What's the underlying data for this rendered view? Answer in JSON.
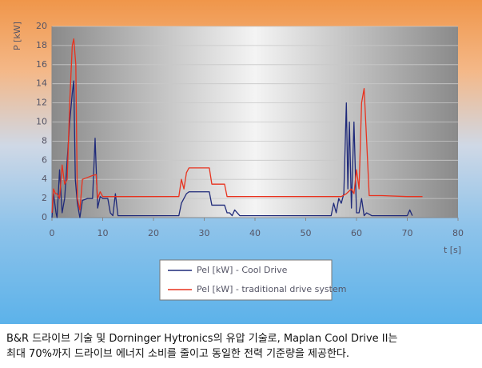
{
  "chart_data": {
    "type": "line",
    "ylabel": "P [kW]",
    "xlabel": "t [s]",
    "xlim": [
      0,
      80
    ],
    "xticks": [
      0,
      10,
      20,
      30,
      40,
      50,
      60,
      70,
      80
    ],
    "ylim": [
      0,
      20
    ],
    "yticks": [
      0,
      2,
      4,
      6,
      8,
      10,
      12,
      14,
      16,
      18,
      20
    ],
    "grid": true,
    "series": [
      {
        "name": "Pel [kW] - Cool Drive",
        "color": "#1f2a7a",
        "x": [
          0,
          0.3,
          0.8,
          1,
          1.5,
          2,
          2.5,
          3,
          3.5,
          4,
          4.3,
          4.6,
          5,
          5.5,
          6,
          7,
          8,
          8.5,
          9,
          9.5,
          10,
          11,
          11.5,
          12,
          12.5,
          13,
          20,
          25,
          25.5,
          26,
          26.5,
          27,
          30,
          31,
          31.5,
          34,
          34.5,
          35,
          35.5,
          36,
          37,
          38,
          55,
          55.5,
          56,
          56.5,
          57,
          57.5,
          58,
          58.3,
          58.6,
          59,
          59.5,
          60,
          60.5,
          61,
          61.5,
          62,
          63,
          70,
          70.5,
          71
        ],
        "values": [
          0,
          2.5,
          0.5,
          0,
          5,
          0.5,
          2,
          6,
          10,
          13,
          14.3,
          4,
          1.5,
          0,
          1.8,
          2,
          2,
          8.3,
          1,
          2.2,
          2,
          2,
          0.5,
          0.2,
          2.5,
          0.2,
          0.2,
          0.2,
          1.5,
          2,
          2.5,
          2.7,
          2.7,
          2.7,
          1.3,
          1.3,
          0.5,
          0.5,
          0.2,
          0.8,
          0.2,
          0.2,
          0.2,
          1.5,
          0.5,
          2,
          1.5,
          2.5,
          12,
          3,
          10,
          1,
          10,
          0.5,
          0.5,
          2,
          0.2,
          0.5,
          0.2,
          0.2,
          0.8,
          0.2
        ]
      },
      {
        "name": "Pel [kW] - traditional drive system",
        "color": "#e8321e",
        "x": [
          0,
          0.3,
          0.7,
          1,
          1.5,
          2,
          2.5,
          3,
          3.5,
          4,
          4.3,
          4.7,
          5,
          5.5,
          6,
          7,
          8,
          8.7,
          9,
          9.5,
          10,
          12,
          13,
          20,
          25,
          25.5,
          26,
          26.5,
          27,
          30,
          31,
          31.5,
          34,
          34.5,
          40,
          50,
          56,
          57,
          58,
          59,
          59.5,
          60,
          60.5,
          61,
          61.5,
          62,
          62.5,
          65,
          70,
          73
        ],
        "values": [
          0.5,
          3,
          2.5,
          2.5,
          2,
          5.5,
          3.5,
          4,
          12,
          18,
          18.7,
          16,
          2,
          0.8,
          4,
          4.2,
          4.4,
          4.5,
          2,
          2.7,
          2.2,
          2.2,
          2.2,
          2.2,
          2.2,
          4,
          3,
          4.7,
          5.2,
          5.2,
          5.2,
          3.5,
          3.5,
          2.2,
          2.2,
          2.2,
          2.2,
          2.2,
          2.5,
          3,
          2.5,
          5,
          3,
          12,
          13.5,
          8,
          2.3,
          2.3,
          2.2,
          2.2
        ]
      }
    ]
  },
  "caption": [
    "B&R 드라이브 기술 및 Dorninger Hytronics의 유압 기술로, Maplan Cool Drive II는",
    "최대 70%까지 드라이브 에너지 소비를 줄이고 동일한 전력 기준량을 제공한다."
  ]
}
